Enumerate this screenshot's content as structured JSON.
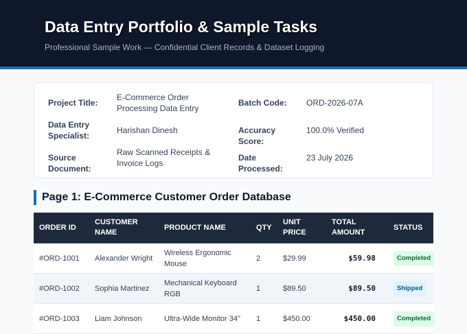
{
  "header": {
    "title": "Data Entry Portfolio & Sample Tasks",
    "subtitle": "Professional Sample Work — Confidential Client Records & Dataset Logging"
  },
  "info": {
    "fields": [
      {
        "label": "Project Title:",
        "value": "E-Commerce Order Processing Data Entry"
      },
      {
        "label": "Batch Code:",
        "value": "ORD-2026-07A"
      },
      {
        "label": "Data Entry Specialist:",
        "value": "Harishan Dinesh"
      },
      {
        "label": "Accuracy Score:",
        "value": "100.0% Verified"
      },
      {
        "label": "Source Document:",
        "value": "Raw Scanned Receipts & Invoice Logs"
      },
      {
        "label": "Date Processed:",
        "value": "23 July 2026"
      }
    ]
  },
  "section_title": "Page 1: E-Commerce Customer Order Database",
  "table": {
    "columns": [
      "ORDER ID",
      "CUSTOMER NAME",
      "PRODUCT NAME",
      "QTY",
      "UNIT PRICE",
      "TOTAL AMOUNT",
      "STATUS"
    ],
    "rows": [
      {
        "cells": [
          "#ORD-1001",
          "Alexander Wright",
          "Wireless Ergonomic Mouse",
          "2",
          "$29.99",
          "$59.98",
          "Completed"
        ],
        "badge": {
          "bg": "#dcfce7",
          "fg": "#166534"
        }
      },
      {
        "cells": [
          "#ORD-1002",
          "Sophia Martinez",
          "Mechanical Keyboard RGB",
          "1",
          "$89.50",
          "$89.50",
          "Shipped"
        ],
        "badge": {
          "bg": "#e0f2fe",
          "fg": "#075985"
        }
      },
      {
        "cells": [
          "#ORD-1003",
          "Liam Johnson",
          "Ultra-Wide Monitor 34\"",
          "1",
          "$450.00",
          "$450.00",
          "Completed"
        ],
        "badge": {
          "bg": "#dcfce7",
          "fg": "#166534"
        }
      }
    ]
  }
}
